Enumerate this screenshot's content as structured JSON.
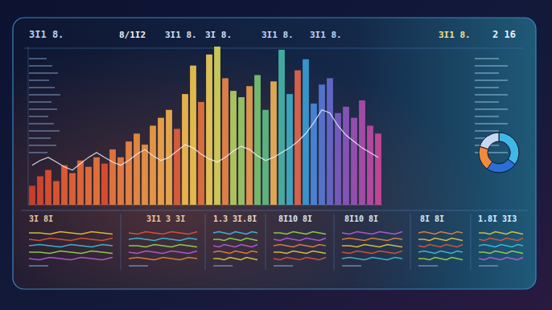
{
  "chart_data": [
    {
      "type": "bar",
      "annotations": [
        "3I1 8.",
        "8/1I2",
        "3I1 8.",
        "3I 8.",
        "3I1 8.",
        "3I1 8.",
        "3I1 8.",
        "2 16",
        "3I 8I",
        "3I1 3 3I",
        "1.3 3I.8I",
        "8I10 8I",
        "8I10 8I",
        "8I 8I",
        "1.8I 3I3"
      ],
      "categories": [
        null,
        null,
        null,
        null,
        null,
        null,
        null,
        null,
        null,
        null,
        null,
        null,
        null,
        null,
        null,
        null,
        null,
        null,
        null,
        null,
        null,
        null,
        null,
        null,
        null,
        null,
        null,
        null,
        null,
        null,
        null,
        null,
        null,
        null,
        null,
        null,
        null,
        null,
        null,
        null,
        null,
        null,
        null,
        null
      ],
      "series": [
        {
          "type": "bar",
          "colors": [
            "#d9402a",
            "#e0482c",
            "#e4522e",
            "#e85a30",
            "#ea5f32",
            "#ec6634",
            "#ee6c36",
            "#f07238",
            "#f2783a",
            "#e9502c",
            "#f07a3c",
            "#f2823e",
            "#f48a40",
            "#f29042",
            "#f39844",
            "#f5a046",
            "#f7aa4a",
            "#f5b24c",
            "#e8603a",
            "#f8c050",
            "#f4c84e",
            "#e9743e",
            "#f2d058",
            "#d8d85a",
            "#f08848",
            "#b8d460",
            "#9ccf68",
            "#f0a050",
            "#7cc870",
            "#5ec088",
            "#f2b458",
            "#48b8a8",
            "#3fb0c8",
            "#e86848",
            "#3aa0d8",
            "#4a8ce0",
            "#5a7ad8",
            "#6a6ad0",
            "#7c5ec8",
            "#8e58c0",
            "#a052b8",
            "#b24eb0",
            "#c24aa6",
            "#d0489c"
          ],
          "values": [
            12,
            18,
            22,
            15,
            25,
            20,
            28,
            24,
            30,
            26,
            35,
            30,
            40,
            45,
            38,
            50,
            55,
            60,
            48,
            70,
            88,
            65,
            95,
            100,
            80,
            72,
            68,
            75,
            82,
            60,
            78,
            98,
            70,
            85,
            92,
            64,
            76,
            80,
            58,
            62,
            55,
            66,
            50,
            45
          ]
        },
        {
          "type": "line",
          "color": "#f4f0ff",
          "values": [
            25,
            28,
            30,
            27,
            24,
            22,
            26,
            30,
            33,
            30,
            27,
            25,
            28,
            32,
            35,
            31,
            28,
            30,
            34,
            38,
            36,
            32,
            29,
            27,
            30,
            34,
            37,
            35,
            31,
            28,
            30,
            33,
            36,
            40,
            45,
            52,
            60,
            58,
            50,
            44,
            40,
            36,
            33,
            30
          ]
        }
      ],
      "ylim": [
        0,
        100
      ],
      "grid": false,
      "tick_labels": false
    },
    {
      "type": "pie",
      "values": [
        35,
        25,
        20,
        20
      ],
      "colors": [
        "#3fb8e8",
        "#2a6fd6",
        "#f08a3c",
        "#c8d8f0"
      ],
      "tick_labels": false
    }
  ]
}
